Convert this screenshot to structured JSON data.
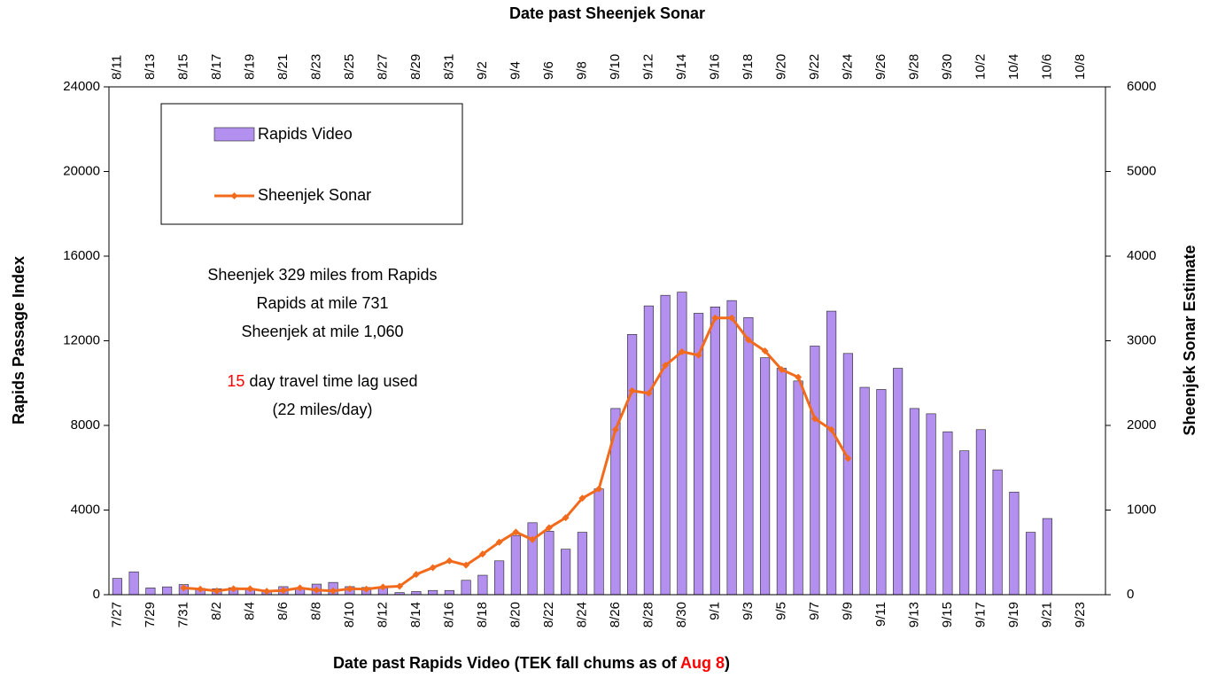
{
  "chart_data": {
    "type": "bar_line",
    "x_label": [
      "Date past Rapids Video (TEK fall chums as of ",
      "Aug 8",
      ")"
    ],
    "x2_label": "Date past Sheenjek Sonar",
    "y_label": "Rapids Passage Index",
    "y2_label": "Sheenjek Sonar Estimate",
    "categories": [
      "7/27",
      null,
      "7/29",
      null,
      "7/31",
      null,
      "8/2",
      null,
      "8/4",
      null,
      "8/6",
      null,
      "8/8",
      null,
      "8/10",
      null,
      "8/12",
      null,
      "8/14",
      null,
      "8/16",
      null,
      "8/18",
      null,
      "8/20",
      null,
      "8/22",
      null,
      "8/24",
      null,
      "8/26",
      null,
      "8/28",
      null,
      "8/30",
      null,
      "9/1",
      null,
      "9/3",
      null,
      "9/5",
      null,
      "9/7",
      null,
      "9/9",
      null,
      "9/11",
      null,
      "9/13",
      null,
      "9/15",
      null,
      "9/17",
      null,
      "9/19",
      null,
      "9/21",
      null,
      "9/23",
      null
    ],
    "x2_categories": [
      "8/11",
      null,
      "8/13",
      null,
      "8/15",
      null,
      "8/17",
      null,
      "8/19",
      null,
      "8/21",
      null,
      "8/23",
      null,
      "8/25",
      null,
      "8/27",
      null,
      "8/29",
      null,
      "8/31",
      null,
      "9/2",
      null,
      "9/4",
      null,
      "9/6",
      null,
      "9/8",
      null,
      "9/10",
      null,
      "9/12",
      null,
      "9/14",
      null,
      "9/16",
      null,
      "9/18",
      null,
      "9/20",
      null,
      "9/22",
      null,
      "9/24",
      null,
      "9/26",
      null,
      "9/28",
      null,
      "9/30",
      null,
      "10/2",
      null,
      "10/4",
      null,
      "10/6",
      null,
      "10/8",
      null
    ],
    "series": [
      {
        "name": "Rapids Video",
        "type": "bar",
        "color": "#b38ff0",
        "values": [
          770,
          1080,
          320,
          370,
          480,
          300,
          280,
          330,
          250,
          150,
          380,
          330,
          500,
          580,
          380,
          340,
          320,
          100,
          150,
          200,
          200,
          680,
          920,
          1600,
          2800,
          3400,
          3000,
          2150,
          2950,
          5000,
          8800,
          12300,
          13650,
          14150,
          14300,
          13300,
          13600,
          13900,
          13100,
          11200,
          10700,
          10100,
          11750,
          13400,
          11400,
          9800,
          9700,
          10700,
          8800,
          8550,
          7700,
          6800,
          7800,
          5900,
          4850,
          2950,
          3600,
          null,
          null,
          null
        ]
      },
      {
        "name": "Sheenjek Sonar",
        "type": "line",
        "axis": "y2",
        "color": "#f26b1d",
        "values": [
          null,
          null,
          null,
          null,
          80,
          65,
          45,
          70,
          70,
          40,
          50,
          80,
          55,
          45,
          70,
          65,
          90,
          100,
          240,
          320,
          400,
          350,
          480,
          620,
          740,
          650,
          790,
          910,
          1140,
          1250,
          1950,
          2410,
          2380,
          2710,
          2870,
          2830,
          3270,
          3270,
          3010,
          2880,
          2660,
          2570,
          2080,
          1950,
          1610,
          null,
          null,
          null,
          null,
          null,
          null,
          null,
          null,
          null,
          null,
          null,
          null,
          null,
          null,
          null
        ]
      }
    ],
    "ylim": [
      0,
      24000
    ],
    "yticks": [
      0,
      4000,
      8000,
      12000,
      16000,
      20000,
      24000
    ],
    "y2lim": [
      0,
      6000
    ],
    "y2ticks": [
      0,
      1000,
      2000,
      3000,
      4000,
      5000,
      6000
    ],
    "grid": false,
    "legend": "upper left",
    "annotations": [
      [
        "Sheenjek 329 miles from Rapids"
      ],
      [
        "Rapids at mile 731"
      ],
      [
        "Sheenjek at mile 1,060"
      ],
      [
        "15",
        " day travel time lag used"
      ],
      [
        "(22 miles/day)"
      ]
    ],
    "highlight_color": "#ff0000"
  }
}
